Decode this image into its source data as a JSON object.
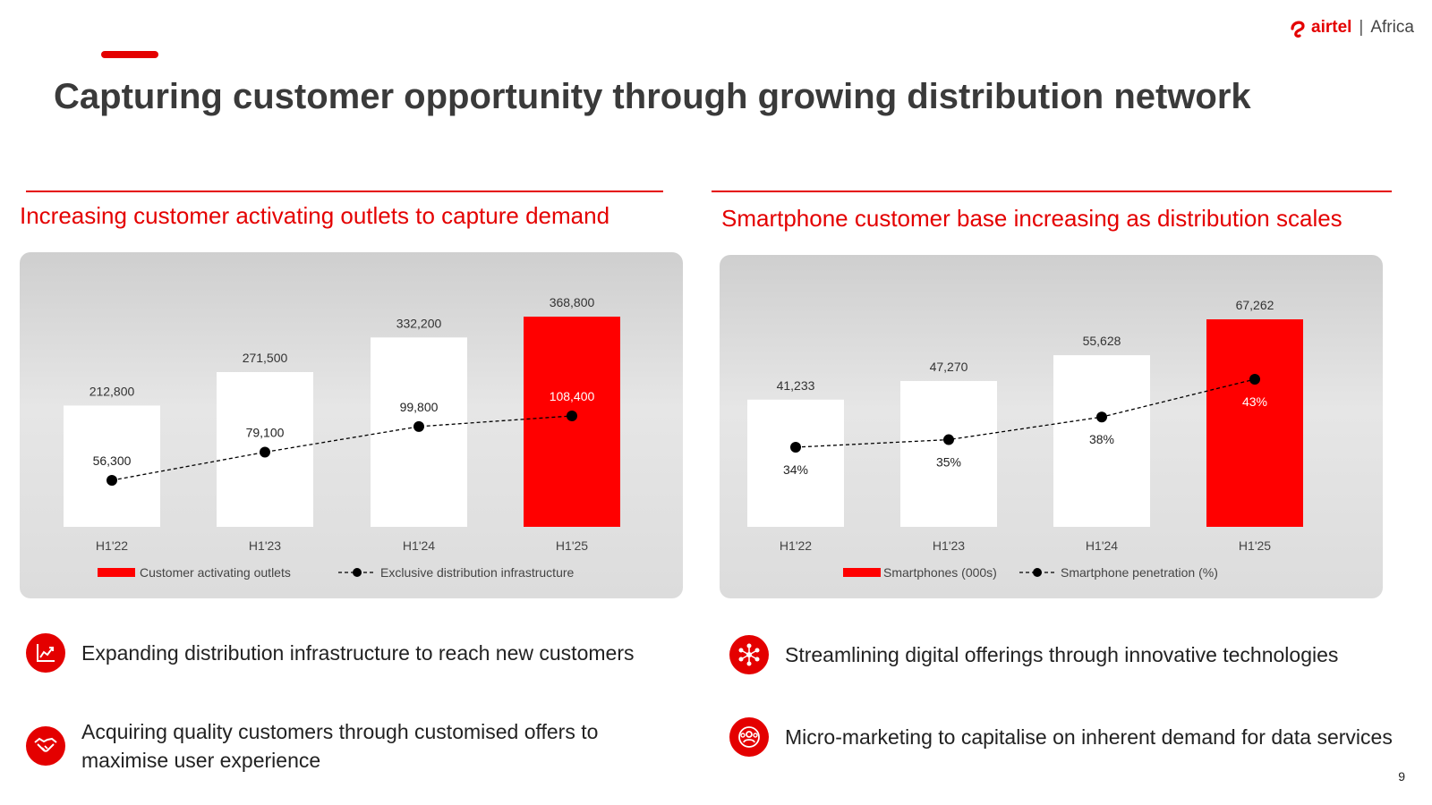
{
  "header": {
    "title": "Capturing customer opportunity through growing distribution network",
    "logo": {
      "brand": "airtel",
      "separator": "|",
      "region": "Africa"
    },
    "accent_color": "#e40000"
  },
  "left_section": {
    "title": "Increasing customer activating outlets to capture demand"
  },
  "right_section": {
    "title": "Smartphone customer base increasing as distribution scales"
  },
  "chart_data": [
    {
      "type": "bar",
      "categories": [
        "H1'22",
        "H1'23",
        "H1'24",
        "H1'25"
      ],
      "series": [
        {
          "name": "Customer activating outlets",
          "kind": "bar",
          "values": [
            212800,
            271500,
            332200,
            368800
          ],
          "labels": [
            "212,800",
            "271,500",
            "332,200",
            "368,800"
          ],
          "highlight_last": true
        },
        {
          "name": "Exclusive distribution infrastructure",
          "kind": "line",
          "values": [
            56300,
            79100,
            99800,
            108400
          ],
          "labels": [
            "56,300",
            "79,100",
            "99,800",
            "108,400"
          ]
        }
      ],
      "colors": {
        "bar": "#ffffff",
        "highlight": "#ff0000",
        "line": "#000000"
      },
      "legend_position": "bottom",
      "grid": false
    },
    {
      "type": "bar",
      "categories": [
        "H1'22",
        "H1'23",
        "H1'24",
        "H1'25"
      ],
      "series": [
        {
          "name": "Smartphones (000s)",
          "kind": "bar",
          "values": [
            41233,
            47270,
            55628,
            67262
          ],
          "labels": [
            "41,233",
            "47,270",
            "55,628",
            "67,262"
          ],
          "highlight_last": true
        },
        {
          "name": "Smartphone penetration (%)",
          "kind": "line",
          "values": [
            34,
            35,
            38,
            43
          ],
          "labels": [
            "34%",
            "35%",
            "38%",
            "43%"
          ]
        }
      ],
      "colors": {
        "bar": "#ffffff",
        "highlight": "#ff0000",
        "line": "#000000"
      },
      "legend_position": "bottom",
      "grid": false
    }
  ],
  "bullets_left": [
    {
      "icon": "growth-chart-icon",
      "text": "Expanding distribution infrastructure to reach new customers"
    },
    {
      "icon": "handshake-icon",
      "text": "Acquiring quality customers through customised offers to maximise user experience"
    }
  ],
  "bullets_right": [
    {
      "icon": "network-nodes-icon",
      "text": "Streamlining digital offerings through innovative technologies"
    },
    {
      "icon": "people-target-icon",
      "text": "Micro-marketing to capitalise on inherent demand for data services"
    }
  ],
  "footer": {
    "page_number": "9"
  }
}
